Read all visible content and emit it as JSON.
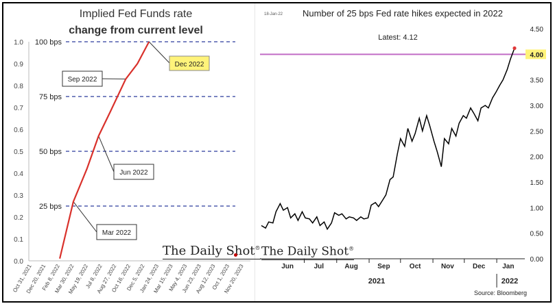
{
  "colors": {
    "line": "#d9312b",
    "dash": "#2a3b9c",
    "hike_line": "#000000",
    "latest_line": "#c06bc5",
    "highlight": "#fff37a"
  },
  "left_chart": {
    "title_line1": "Implied Fed Funds rate",
    "title_line2": "change from current level",
    "brand": "The Daily Shot",
    "brand_mark": "®",
    "levels": [
      {
        "label": "100 bps",
        "value": 1.0
      },
      {
        "label": "75 bps",
        "value": 0.75
      },
      {
        "label": "50 bps",
        "value": 0.5
      },
      {
        "label": "25 bps",
        "value": 0.25
      }
    ],
    "callouts": [
      {
        "label": "Sep 2022",
        "highlight": false
      },
      {
        "label": "Dec 2022",
        "highlight": true
      },
      {
        "label": "Jun 2022",
        "highlight": false
      },
      {
        "label": "Mar 2022",
        "highlight": false
      }
    ]
  },
  "right_chart": {
    "title": "Number of 25 bps Fed rate hikes expected in 2022",
    "date_stamp": "18-Jan-22",
    "latest_text": "Latest:  4.12",
    "brand": "The Daily Shot",
    "brand_mark": "®",
    "source": "Source: Bloomberg",
    "year_labels": [
      "2021",
      "2022"
    ]
  },
  "chart_data": [
    {
      "type": "line",
      "title": "Implied Fed Funds rate change from current level",
      "x_ticks": [
        "Oct 31, 2021",
        "Dec 20, 2021",
        "Feb 8, 2022",
        "Mar 30, 2022",
        "May 19, 2022",
        "Jul 8, 2022",
        "Aug 27, 2022",
        "Oct 16, 2022",
        "Dec 5, 2022",
        "Jan 24, 2023",
        "Mar 15, 2023",
        "May 4, 2023",
        "Jun 23, 2023",
        "Aug 12, 2023",
        "Oct 1, 2023",
        "Nov 20, 2023"
      ],
      "y_ticks": [
        "0.0",
        "0.1",
        "0.2",
        "0.3",
        "0.4",
        "0.5",
        "0.6",
        "0.7",
        "0.8",
        "0.9",
        "1.0"
      ],
      "ylim": [
        0,
        1.0
      ],
      "series": [
        {
          "x": [
            "2022-01-26",
            "2022-03-16",
            "2022-05-04",
            "2022-06-15",
            "2022-07-27",
            "2022-09-21",
            "2022-11-02",
            "2022-12-14"
          ],
          "y": [
            0.01,
            0.27,
            0.42,
            0.57,
            0.68,
            0.83,
            0.9,
            1.0
          ]
        }
      ]
    },
    {
      "type": "line",
      "title": "Number of 25 bps Fed rate hikes expected in 2022",
      "x_ticks": [
        "Jun",
        "Jul",
        "Aug",
        "Sep",
        "Oct",
        "Nov",
        "Dec",
        "Jan"
      ],
      "y_ticks": [
        "0.00",
        "0.50",
        "1.00",
        "1.50",
        "2.00",
        "2.50",
        "3.00",
        "3.50",
        "4.00",
        "4.50"
      ],
      "ylim": [
        0,
        4.5
      ],
      "latest": 4.12,
      "series": [
        {
          "x": [
            "2021-05-21",
            "2021-05-25",
            "2021-05-28",
            "2021-06-01",
            "2021-06-04",
            "2021-06-08",
            "2021-06-11",
            "2021-06-15",
            "2021-06-18",
            "2021-06-22",
            "2021-06-25",
            "2021-06-29",
            "2021-07-02",
            "2021-07-06",
            "2021-07-09",
            "2021-07-13",
            "2021-07-16",
            "2021-07-20",
            "2021-07-23",
            "2021-07-27",
            "2021-07-30",
            "2021-08-03",
            "2021-08-06",
            "2021-08-10",
            "2021-08-13",
            "2021-08-17",
            "2021-08-20",
            "2021-08-24",
            "2021-08-27",
            "2021-08-31",
            "2021-09-03",
            "2021-09-07",
            "2021-09-10",
            "2021-09-14",
            "2021-09-17",
            "2021-09-21",
            "2021-09-24",
            "2021-09-28",
            "2021-10-01",
            "2021-10-05",
            "2021-10-08",
            "2021-10-12",
            "2021-10-15",
            "2021-10-19",
            "2021-10-22",
            "2021-10-26",
            "2021-10-29",
            "2021-11-02",
            "2021-11-05",
            "2021-11-09",
            "2021-11-12",
            "2021-11-16",
            "2021-11-19",
            "2021-11-23",
            "2021-11-26",
            "2021-11-30",
            "2021-12-03",
            "2021-12-07",
            "2021-12-10",
            "2021-12-14",
            "2021-12-17",
            "2021-12-21",
            "2021-12-24",
            "2021-12-28",
            "2021-12-31",
            "2022-01-04",
            "2022-01-07",
            "2022-01-11",
            "2022-01-14",
            "2022-01-18"
          ],
          "y": [
            0.65,
            0.6,
            0.72,
            0.7,
            0.92,
            1.08,
            0.95,
            1.0,
            0.8,
            0.88,
            0.75,
            0.92,
            0.8,
            0.78,
            0.7,
            0.82,
            0.65,
            0.72,
            0.58,
            0.7,
            0.9,
            0.85,
            0.88,
            0.78,
            0.82,
            0.8,
            0.75,
            0.82,
            0.78,
            0.8,
            1.05,
            1.1,
            1.02,
            1.15,
            1.25,
            1.55,
            1.6,
            2.05,
            2.35,
            2.2,
            2.55,
            2.3,
            2.45,
            2.75,
            2.5,
            2.8,
            2.6,
            2.3,
            2.1,
            1.8,
            2.35,
            2.25,
            2.55,
            2.4,
            2.65,
            2.8,
            2.75,
            2.95,
            2.85,
            2.7,
            2.95,
            3.0,
            2.95,
            3.15,
            3.25,
            3.4,
            3.5,
            3.7,
            3.9,
            4.12
          ]
        }
      ]
    }
  ]
}
